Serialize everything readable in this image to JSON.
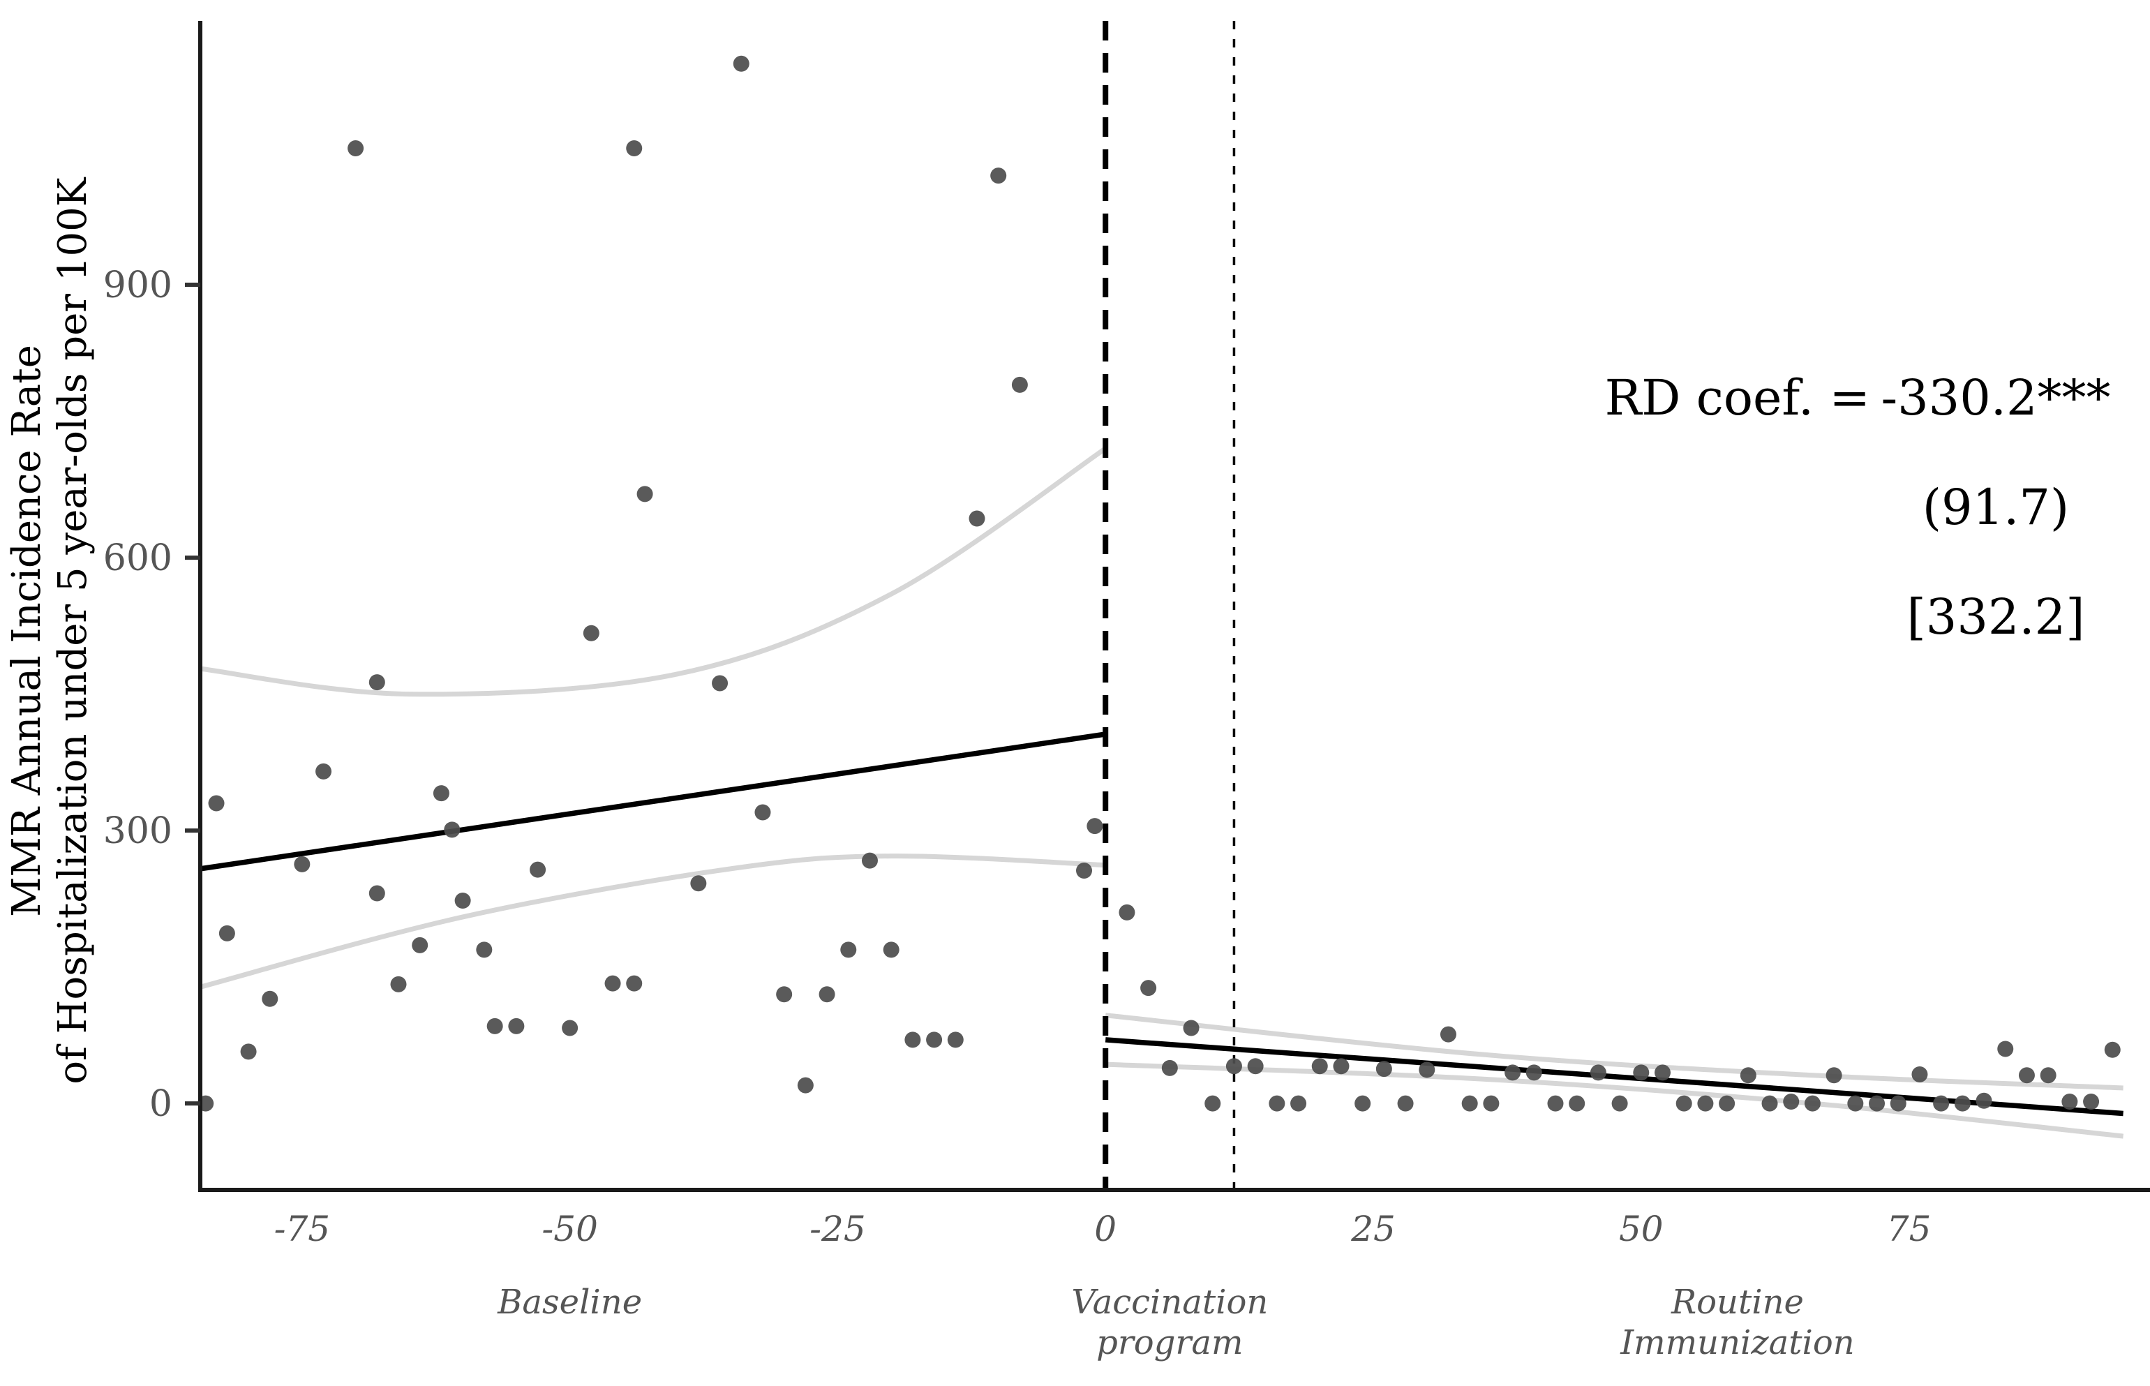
{
  "chart_data": {
    "type": "scatter",
    "title": "",
    "ylabel_line1": "MMR Annual Incidence Rate",
    "ylabel_line2": "of Hospitalization under 5 year-olds per 100K",
    "xlabel": "",
    "x_axis": {
      "min": -84.5,
      "max": 97.5,
      "ticks": [
        -75,
        -50,
        -25,
        0,
        25,
        50,
        75
      ],
      "grid": false
    },
    "y_axis": {
      "min": -95,
      "max": 1190,
      "ticks": [
        0,
        300,
        600,
        900
      ],
      "grid": false
    },
    "cutoff_line_x": 0,
    "secondary_dotted_line_x": 12,
    "region_labels": [
      {
        "x": -50,
        "lines": [
          "Baseline"
        ]
      },
      {
        "x": 6,
        "lines": [
          "Vaccination",
          "program"
        ]
      },
      {
        "x": 59,
        "lines": [
          "Routine",
          "Immunization"
        ]
      }
    ],
    "series": [
      {
        "name": "baseline-observations",
        "points": [
          [
            -84,
            0
          ],
          [
            -83,
            330
          ],
          [
            -82,
            187
          ],
          [
            -80,
            57
          ],
          [
            -78,
            115
          ],
          [
            -75,
            263
          ],
          [
            -73,
            365
          ],
          [
            -70,
            1050
          ],
          [
            -68,
            463
          ],
          [
            -68,
            231
          ],
          [
            -66,
            131
          ],
          [
            -64,
            174
          ],
          [
            -62,
            341
          ],
          [
            -61,
            301
          ],
          [
            -60,
            223
          ],
          [
            -58,
            169
          ],
          [
            -57,
            85
          ],
          [
            -55,
            85
          ],
          [
            -53,
            257
          ],
          [
            -50,
            83
          ],
          [
            -48,
            517
          ],
          [
            -46,
            132
          ],
          [
            -44,
            132
          ],
          [
            -44,
            1050
          ],
          [
            -43,
            670
          ],
          [
            -38,
            242
          ],
          [
            -36,
            462
          ],
          [
            -34,
            1143
          ],
          [
            -32,
            320
          ],
          [
            -30,
            120
          ],
          [
            -28,
            20
          ],
          [
            -26,
            120
          ],
          [
            -24,
            169
          ],
          [
            -22,
            267
          ],
          [
            -20,
            169
          ],
          [
            -18,
            70
          ],
          [
            -16,
            70
          ],
          [
            -14,
            70
          ],
          [
            -12,
            643
          ],
          [
            -10,
            1020
          ],
          [
            -8,
            790
          ],
          [
            -2,
            256
          ],
          [
            -1,
            305
          ]
        ]
      },
      {
        "name": "post-program-observations",
        "points": [
          [
            2,
            210
          ],
          [
            4,
            127
          ],
          [
            6,
            39
          ],
          [
            8,
            83
          ],
          [
            10,
            0
          ],
          [
            12,
            41
          ],
          [
            14,
            41
          ],
          [
            16,
            0
          ],
          [
            18,
            0
          ],
          [
            20,
            41
          ],
          [
            22,
            41
          ],
          [
            24,
            0
          ],
          [
            26,
            38
          ],
          [
            28,
            0
          ],
          [
            30,
            37
          ],
          [
            32,
            76
          ],
          [
            34,
            0
          ],
          [
            36,
            0
          ],
          [
            38,
            34
          ],
          [
            40,
            34
          ],
          [
            42,
            0
          ],
          [
            44,
            0
          ],
          [
            46,
            34
          ],
          [
            48,
            0
          ],
          [
            50,
            34
          ],
          [
            52,
            34
          ],
          [
            54,
            0
          ],
          [
            56,
            0
          ],
          [
            58,
            0
          ],
          [
            60,
            31
          ],
          [
            62,
            0
          ],
          [
            64,
            2
          ],
          [
            66,
            0
          ],
          [
            68,
            31
          ],
          [
            70,
            0
          ],
          [
            72,
            0
          ],
          [
            74,
            0
          ],
          [
            76,
            32
          ],
          [
            78,
            0
          ],
          [
            80,
            0
          ],
          [
            82,
            3
          ],
          [
            84,
            60
          ],
          [
            86,
            31
          ],
          [
            88,
            31
          ],
          [
            90,
            2
          ],
          [
            92,
            2
          ],
          [
            94,
            59
          ]
        ]
      }
    ],
    "fit_lines": [
      {
        "name": "baseline-fit",
        "points": [
          [
            -84.5,
            258
          ],
          [
            0,
            406
          ]
        ]
      },
      {
        "name": "post-program-fit",
        "points": [
          [
            0,
            70
          ],
          [
            95,
            -11
          ]
        ]
      }
    ],
    "ci_curves": [
      {
        "name": "baseline-ci-upper",
        "points": [
          [
            -84.5,
            478
          ],
          [
            -65,
            450
          ],
          [
            -40,
            472
          ],
          [
            -20,
            560
          ],
          [
            0,
            720
          ]
        ]
      },
      {
        "name": "baseline-ci-lower",
        "points": [
          [
            -84.5,
            128
          ],
          [
            -60,
            205
          ],
          [
            -35,
            258
          ],
          [
            -20,
            272
          ],
          [
            0,
            262
          ]
        ]
      },
      {
        "name": "post-ci-upper",
        "points": [
          [
            0,
            97
          ],
          [
            35,
            54
          ],
          [
            66,
            31
          ],
          [
            95,
            17
          ]
        ]
      },
      {
        "name": "post-ci-lower",
        "points": [
          [
            0,
            43
          ],
          [
            35,
            27
          ],
          [
            66,
            0
          ],
          [
            95,
            -36
          ]
        ]
      }
    ],
    "annotation": {
      "label": "RD coef. =",
      "value": "-330.2***",
      "se": "(91.7)",
      "ci": "[332.2]"
    },
    "colors": {
      "point": "#4d4d4d",
      "fit_line": "#000000",
      "ci_line": "#d6d6d6",
      "axis": "#1a1a1a",
      "tick_label": "#555555",
      "region_label": "#555555",
      "annotation_text": "#000000",
      "background": "#ffffff"
    },
    "legend": {
      "visible": false
    }
  }
}
